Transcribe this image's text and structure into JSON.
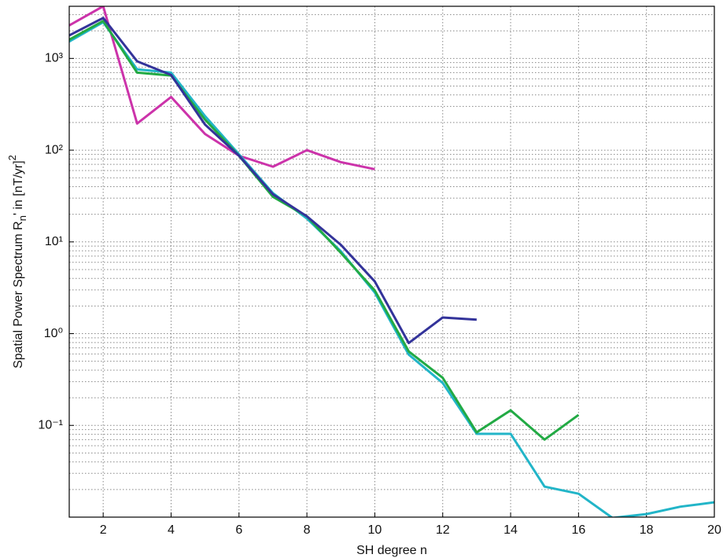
{
  "chart_data": {
    "type": "line",
    "xlabel": "SH degree n",
    "ylabel": [
      "Spatial Power Spectrum R",
      "n",
      "' in [nT/yr]",
      "2"
    ],
    "x": [
      1,
      2,
      3,
      4,
      5,
      6,
      7,
      8,
      9,
      10,
      11,
      12,
      13,
      14,
      15,
      16,
      17,
      18,
      19,
      20
    ],
    "series": [
      {
        "color": "#cc33aa",
        "values": [
          2290,
          3700,
          195,
          380,
          150,
          87,
          66,
          100,
          74,
          62,
          null,
          null,
          null,
          null,
          null,
          null,
          null,
          null,
          null,
          null
        ]
      },
      {
        "color": "#22b5c8",
        "values": [
          1530,
          2480,
          760,
          700,
          235,
          90,
          34,
          18,
          7.9,
          2.8,
          0.59,
          0.29,
          0.081,
          0.081,
          0.0215,
          0.018,
          0.0098,
          0.0108,
          0.013,
          0.0145
        ]
      },
      {
        "color": "#22aa44",
        "values": [
          1600,
          2560,
          700,
          650,
          215,
          87,
          31,
          19,
          7.6,
          2.95,
          0.64,
          0.33,
          0.084,
          0.146,
          0.07,
          0.13,
          null,
          null,
          null,
          null
        ]
      },
      {
        "color": "#33339a",
        "values": [
          1780,
          2760,
          930,
          660,
          190,
          87,
          33,
          19,
          9.3,
          3.7,
          0.79,
          1.5,
          1.42,
          null,
          null,
          null,
          null,
          null,
          null,
          null
        ]
      }
    ],
    "xlim": [
      1,
      20
    ],
    "xticks": [
      2,
      4,
      6,
      8,
      10,
      12,
      14,
      16,
      18,
      20
    ],
    "ylim": [
      0.01,
      3700
    ],
    "log_y": true,
    "yticks": [
      {
        "value": 0.1,
        "label": "10⁻¹"
      },
      {
        "value": 1,
        "label": "10⁰"
      },
      {
        "value": 10,
        "label": "10¹"
      },
      {
        "value": 100,
        "label": "10²"
      },
      {
        "value": 1000,
        "label": "10³"
      }
    ],
    "grid": true,
    "minor_grid": true
  }
}
